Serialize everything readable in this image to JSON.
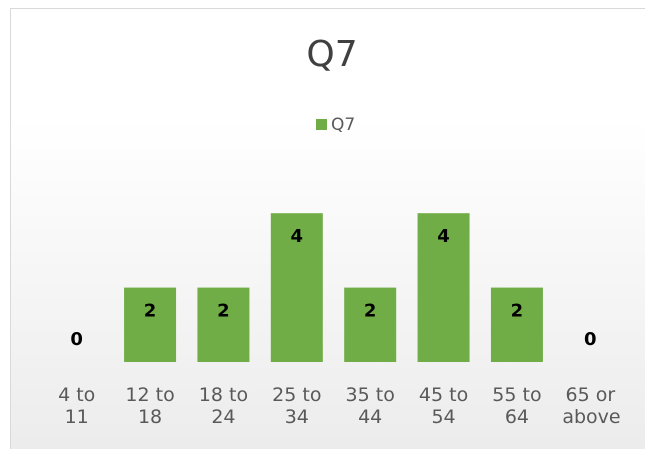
{
  "chart_data": {
    "type": "bar",
    "title": "Q7",
    "categories": [
      "4 to 11",
      "12 to 18",
      "18 to 24",
      "25 to 34",
      "35 to 44",
      "45 to 54",
      "55 to 64",
      "65 or above"
    ],
    "series": [
      {
        "name": "Q7",
        "color": "#70ad47",
        "values": [
          0,
          2,
          2,
          4,
          2,
          4,
          2,
          0
        ]
      }
    ],
    "ylim": [
      0,
      5
    ],
    "legend": "top"
  }
}
